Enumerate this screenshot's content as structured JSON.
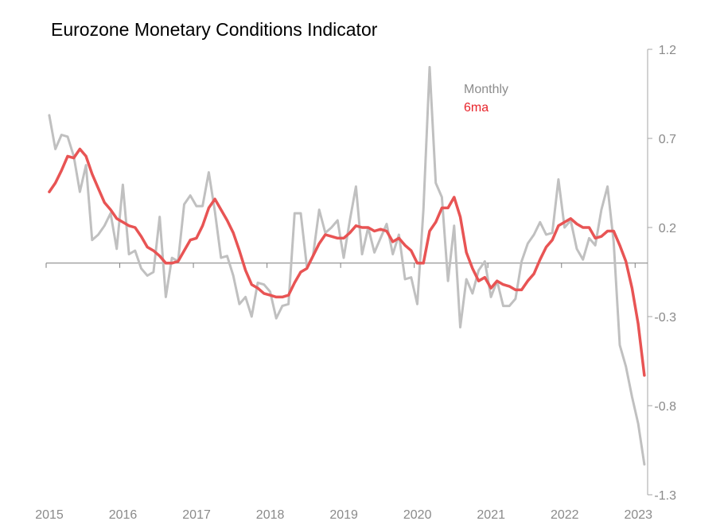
{
  "chart_data": {
    "type": "line",
    "title": "Eurozone Monetary Conditions Indicator",
    "xlabel": "",
    "ylabel": "",
    "x_start": "2015-01",
    "x_frequency": "monthly",
    "x_ticks": [
      "2015",
      "2016",
      "2017",
      "2018",
      "2019",
      "2020",
      "2021",
      "2022",
      "2023"
    ],
    "y_ticks": [
      "1.2",
      "0.7",
      "0.2",
      "-0.3",
      "-0.8",
      "-1.3"
    ],
    "ylim": [
      -1.3,
      1.2
    ],
    "y_axis_position": "right",
    "grid": false,
    "legend_placement": "top-center",
    "legend": [
      {
        "label": "Monthly",
        "color": "#8c8c8c"
      },
      {
        "label": "6ma",
        "color": "#e8242b"
      }
    ],
    "series": [
      {
        "name": "Monthly",
        "color": "#c0c0c0",
        "values": [
          0.83,
          0.64,
          0.72,
          0.71,
          0.6,
          0.4,
          0.55,
          0.13,
          0.16,
          0.21,
          0.28,
          0.08,
          0.44,
          0.05,
          0.07,
          -0.03,
          -0.07,
          -0.05,
          0.26,
          -0.19,
          0.03,
          0.01,
          0.33,
          0.38,
          0.32,
          0.32,
          0.51,
          0.29,
          0.03,
          0.04,
          -0.07,
          -0.23,
          -0.19,
          -0.3,
          -0.11,
          -0.12,
          -0.16,
          -0.31,
          -0.24,
          -0.23,
          0.28,
          0.28,
          -0.02,
          0.04,
          0.3,
          0.17,
          0.2,
          0.24,
          0.03,
          0.24,
          0.43,
          0.05,
          0.2,
          0.06,
          0.14,
          0.22,
          0.05,
          0.16,
          -0.09,
          -0.08,
          -0.23,
          0.3,
          1.1,
          0.45,
          0.37,
          -0.1,
          0.21,
          -0.36,
          -0.09,
          -0.17,
          -0.04,
          0.01,
          -0.19,
          -0.1,
          -0.24,
          -0.24,
          -0.2,
          0.01,
          0.11,
          0.16,
          0.23,
          0.16,
          0.17,
          0.47,
          0.2,
          0.24,
          0.08,
          0.02,
          0.14,
          0.1,
          0.3,
          0.43,
          0.12,
          -0.46,
          -0.58,
          -0.75,
          -0.9,
          -1.13
        ]
      },
      {
        "name": "6ma",
        "color": "#e85454",
        "values": [
          0.4,
          0.45,
          0.52,
          0.6,
          0.59,
          0.64,
          0.6,
          0.5,
          0.42,
          0.34,
          0.3,
          0.25,
          0.23,
          0.21,
          0.2,
          0.15,
          0.09,
          0.07,
          0.04,
          0.0,
          0.0,
          0.01,
          0.07,
          0.13,
          0.14,
          0.21,
          0.31,
          0.36,
          0.3,
          0.24,
          0.17,
          0.07,
          -0.04,
          -0.12,
          -0.14,
          -0.17,
          -0.18,
          -0.19,
          -0.19,
          -0.18,
          -0.11,
          -0.05,
          -0.03,
          0.04,
          0.11,
          0.16,
          0.15,
          0.14,
          0.14,
          0.17,
          0.21,
          0.2,
          0.2,
          0.18,
          0.19,
          0.18,
          0.12,
          0.14,
          0.1,
          0.07,
          0.0,
          0.0,
          0.18,
          0.23,
          0.31,
          0.31,
          0.37,
          0.26,
          0.06,
          -0.03,
          -0.1,
          -0.08,
          -0.14,
          -0.1,
          -0.12,
          -0.13,
          -0.15,
          -0.15,
          -0.1,
          -0.06,
          0.02,
          0.09,
          0.13,
          0.21,
          0.23,
          0.25,
          0.22,
          0.2,
          0.2,
          0.14,
          0.15,
          0.18,
          0.18,
          0.1,
          0.01,
          -0.14,
          -0.34,
          -0.63
        ]
      }
    ]
  }
}
